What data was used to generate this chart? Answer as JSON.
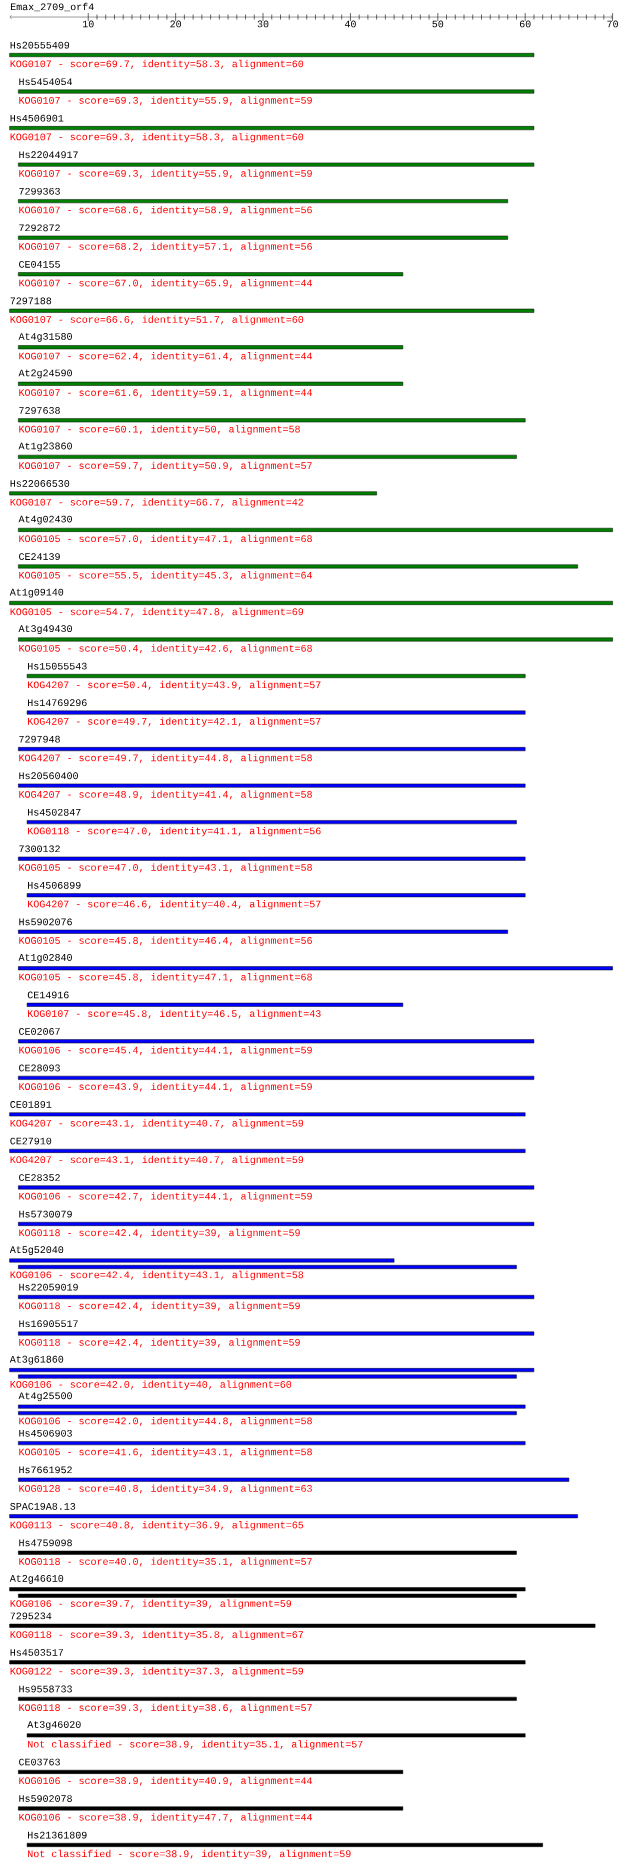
{
  "chart_data": {
    "type": "bar",
    "orientation": "horizontal",
    "title": "Emax_2709_orf4",
    "xlim": [
      1,
      70
    ],
    "xticks": [
      10,
      20,
      30,
      40,
      50,
      60,
      70
    ],
    "categories": [
      "Hs20555409",
      "Hs5454054",
      "Hs4506901",
      "Hs22044917",
      "7299363",
      "7292872",
      "CE04155",
      "7297188",
      "At4g31580",
      "At2g24590",
      "7297638",
      "At1g23860",
      "Hs22066530",
      "At4g02430",
      "CE24139",
      "At1g09140",
      "At3g49430",
      "Hs15055543",
      "Hs14769296",
      "7297948",
      "Hs20560400",
      "Hs4502847",
      "7300132",
      "Hs4506899",
      "Hs5902076",
      "At1g02840",
      "CE14916",
      "CE02067",
      "CE28093",
      "CE01891",
      "CE27910",
      "CE28352",
      "Hs5730079",
      "At5g52040",
      "Hs22059019",
      "Hs16905517",
      "At3g61860",
      "At4g25500",
      "Hs4506903",
      "Hs7661952",
      "SPAC19A8.13",
      "Hs4759098",
      "At2g46610",
      "7295234",
      "Hs4503517",
      "Hs9558733",
      "At3g46020",
      "CE03763",
      "Hs5902078",
      "Hs21361809"
    ],
    "series": [
      {
        "base": [
          1,
          2,
          1,
          2,
          2,
          2,
          2,
          1,
          2,
          2,
          2,
          2,
          1,
          2,
          2,
          1,
          2,
          3,
          3,
          2,
          2,
          3,
          2,
          3,
          2,
          2,
          3,
          2,
          2,
          1,
          1,
          2,
          2,
          1,
          2,
          2,
          1,
          2,
          2,
          2,
          1,
          2,
          1,
          1,
          1,
          2,
          3,
          2,
          2,
          3
        ],
        "values": [
          60,
          59,
          60,
          59,
          56,
          56,
          44,
          60,
          44,
          44,
          58,
          57,
          42,
          68,
          64,
          69,
          68,
          57,
          57,
          58,
          58,
          56,
          58,
          57,
          56,
          68,
          43,
          59,
          59,
          59,
          59,
          59,
          59,
          44,
          59,
          59,
          60,
          58,
          58,
          63,
          65,
          57,
          59,
          67,
          59,
          57,
          57,
          44,
          44,
          59
        ],
        "colors": [
          "#008000",
          "#008000",
          "#008000",
          "#008000",
          "#008000",
          "#008000",
          "#008000",
          "#008000",
          "#008000",
          "#008000",
          "#008000",
          "#008000",
          "#008000",
          "#008000",
          "#008000",
          "#008000",
          "#008000",
          "#008000",
          "#0000ff",
          "#0000ff",
          "#0000ff",
          "#0000ff",
          "#0000ff",
          "#0000ff",
          "#0000ff",
          "#0000ff",
          "#0000ff",
          "#0000ff",
          "#0000ff",
          "#0000ff",
          "#0000ff",
          "#0000ff",
          "#0000ff",
          "#0000ff",
          "#0000ff",
          "#0000ff",
          "#0000ff",
          "#0000ff",
          "#0000ff",
          "#0000ff",
          "#0000ff",
          "#000000",
          "#000000",
          "#000000",
          "#000000",
          "#000000",
          "#000000",
          "#000000",
          "#000000",
          "#000000"
        ]
      },
      {
        "base": [
          null,
          null,
          null,
          null,
          null,
          null,
          null,
          null,
          null,
          null,
          null,
          null,
          null,
          null,
          null,
          null,
          null,
          null,
          null,
          null,
          null,
          null,
          null,
          null,
          null,
          null,
          null,
          null,
          null,
          null,
          null,
          null,
          null,
          2,
          null,
          null,
          2,
          2,
          null,
          null,
          null,
          null,
          2,
          null,
          null,
          null,
          null,
          null,
          null,
          null
        ],
        "values": [
          null,
          null,
          null,
          null,
          null,
          null,
          null,
          null,
          null,
          null,
          null,
          null,
          null,
          null,
          null,
          null,
          null,
          null,
          null,
          null,
          null,
          null,
          null,
          null,
          null,
          null,
          null,
          null,
          null,
          null,
          null,
          null,
          null,
          57,
          null,
          null,
          57,
          57,
          null,
          null,
          null,
          null,
          57,
          null,
          null,
          null,
          null,
          null,
          null,
          null
        ],
        "colors": [
          null,
          null,
          null,
          null,
          null,
          null,
          null,
          null,
          null,
          null,
          null,
          null,
          null,
          null,
          null,
          null,
          null,
          null,
          null,
          null,
          null,
          null,
          null,
          null,
          null,
          null,
          null,
          null,
          null,
          null,
          null,
          null,
          null,
          "#0000ff",
          null,
          null,
          "#0000ff",
          "#0000ff",
          null,
          null,
          null,
          null,
          "#000000",
          null,
          null,
          null,
          null,
          null,
          null,
          null
        ]
      }
    ],
    "annotations": [
      "KOG0107 - score=69.7, identity=58.3, alignment=60",
      "KOG0107 - score=69.3, identity=55.9, alignment=59",
      "KOG0107 - score=69.3, identity=58.3, alignment=60",
      "KOG0107 - score=69.3, identity=55.9, alignment=59",
      "KOG0107 - score=68.6, identity=58.9, alignment=56",
      "KOG0107 - score=68.2, identity=57.1, alignment=56",
      "KOG0107 - score=67.0, identity=65.9, alignment=44",
      "KOG0107 - score=66.6, identity=51.7, alignment=60",
      "KOG0107 - score=62.4, identity=61.4, alignment=44",
      "KOG0107 - score=61.6, identity=59.1, alignment=44",
      "KOG0107 - score=60.1, identity=50, alignment=58",
      "KOG0107 - score=59.7, identity=50.9, alignment=57",
      "KOG0107 - score=59.7, identity=66.7, alignment=42",
      "KOG0105 - score=57.0, identity=47.1, alignment=68",
      "KOG0105 - score=55.5, identity=45.3, alignment=64",
      "KOG0105 - score=54.7, identity=47.8, alignment=69",
      "KOG0105 - score=50.4, identity=42.6, alignment=68",
      "KOG4207 - score=50.4, identity=43.9, alignment=57",
      "KOG4207 - score=49.7, identity=42.1, alignment=57",
      "KOG4207 - score=49.7, identity=44.8, alignment=58",
      "KOG4207 - score=48.9, identity=41.4, alignment=58",
      "KOG0118 - score=47.0, identity=41.1, alignment=56",
      "KOG0105 - score=47.0, identity=43.1, alignment=58",
      "KOG4207 - score=46.6, identity=40.4, alignment=57",
      "KOG0105 - score=45.8, identity=46.4, alignment=56",
      "KOG0105 - score=45.8, identity=47.1, alignment=68",
      "KOG0107 - score=45.8, identity=46.5, alignment=43",
      "KOG0106 - score=45.4, identity=44.1, alignment=59",
      "KOG0106 - score=43.9, identity=44.1, alignment=59",
      "KOG4207 - score=43.1, identity=40.7, alignment=59",
      "KOG4207 - score=43.1, identity=40.7, alignment=59",
      "KOG0106 - score=42.7, identity=44.1, alignment=59",
      "KOG0118 - score=42.4, identity=39, alignment=59",
      "KOG0106 - score=42.4, identity=43.1, alignment=58",
      "KOG0118 - score=42.4, identity=39, alignment=59",
      "KOG0118 - score=42.4, identity=39, alignment=59",
      "KOG0106 - score=42.0, identity=40, alignment=60",
      "KOG0106 - score=42.0, identity=44.8, alignment=58",
      "KOG0105 - score=41.6, identity=43.1, alignment=58",
      "KOG0128 - score=40.8, identity=34.9, alignment=63",
      "KOG0113 - score=40.8, identity=36.9, alignment=65",
      "KOG0118 - score=40.0, identity=35.1, alignment=57",
      "KOG0106 - score=39.7, identity=39, alignment=59",
      "KOG0118 - score=39.3, identity=35.8, alignment=67",
      "KOG0122 - score=39.3, identity=37.3, alignment=59",
      "KOG0118 - score=39.3, identity=38.6, alignment=57",
      "Not classified - score=38.9, identity=35.1, alignment=57",
      "KOG0106 - score=38.9, identity=40.9, alignment=44",
      "KOG0106 - score=38.9, identity=47.7, alignment=44",
      "Not classified - score=38.9, identity=39, alignment=59"
    ]
  }
}
